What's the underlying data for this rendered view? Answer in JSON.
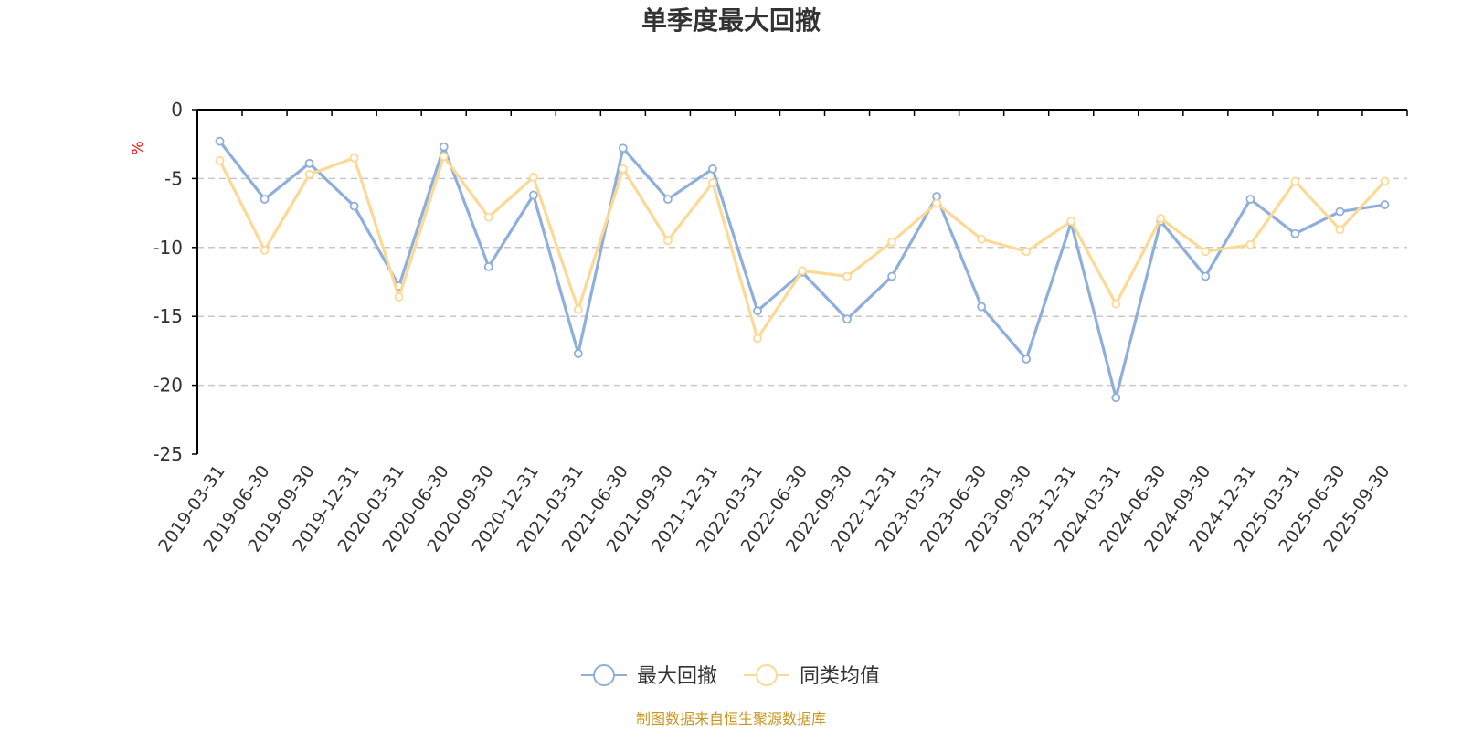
{
  "colors": {
    "series_1": "#8eaedb",
    "series_2": "#fcd994",
    "unit": "#ff0000",
    "source": "#c8961e",
    "axis": "#000000",
    "grid": "#c8c8c8",
    "text": "#333333"
  },
  "chart_data": {
    "type": "line",
    "title": "单季度最大回撤",
    "ylabel": "%",
    "ylim": [
      -25,
      0
    ],
    "yticks": [
      0,
      -5,
      -10,
      -15,
      -20,
      -25
    ],
    "ytick_labels": [
      "0",
      "-5",
      "-10",
      "-15",
      "-20",
      "-25"
    ],
    "grid": "horizontal dashed",
    "legend_position": "bottom",
    "categories": [
      "2019-03-31",
      "2019-06-30",
      "2019-09-30",
      "2019-12-31",
      "2020-03-31",
      "2020-06-30",
      "2020-09-30",
      "2020-12-31",
      "2021-03-31",
      "2021-06-30",
      "2021-09-30",
      "2021-12-31",
      "2022-03-31",
      "2022-06-30",
      "2022-09-30",
      "2022-12-31",
      "2023-03-31",
      "2023-06-30",
      "2023-09-30",
      "2023-12-31",
      "2024-03-31",
      "2024-06-30",
      "2024-09-30",
      "2024-12-31",
      "2025-03-31",
      "2025-06-30",
      "2025-09-30"
    ],
    "series": [
      {
        "name": "最大回撤",
        "values": [
          -2.3,
          -6.5,
          -3.9,
          -7.0,
          -12.8,
          -2.7,
          -11.4,
          -6.2,
          -17.7,
          -2.8,
          -6.5,
          -4.3,
          -14.6,
          -11.8,
          -15.2,
          -12.1,
          -6.3,
          -14.3,
          -18.1,
          -8.2,
          -20.9,
          -8.1,
          -12.1,
          -6.5,
          -9.0,
          -7.4,
          -6.9
        ]
      },
      {
        "name": "同类均值",
        "values": [
          -3.7,
          -10.2,
          -4.7,
          -3.5,
          -13.6,
          -3.4,
          -7.8,
          -4.9,
          -14.5,
          -4.3,
          -9.5,
          -5.3,
          -16.6,
          -11.7,
          -12.1,
          -9.6,
          -6.8,
          -9.4,
          -10.3,
          -8.1,
          -14.1,
          -7.9,
          -10.3,
          -9.8,
          -5.2,
          -8.7,
          -5.2
        ]
      }
    ]
  },
  "legend": {
    "items": [
      "最大回撤",
      "同类均值"
    ]
  },
  "footer": {
    "source": "制图数据来自恒生聚源数据库"
  }
}
